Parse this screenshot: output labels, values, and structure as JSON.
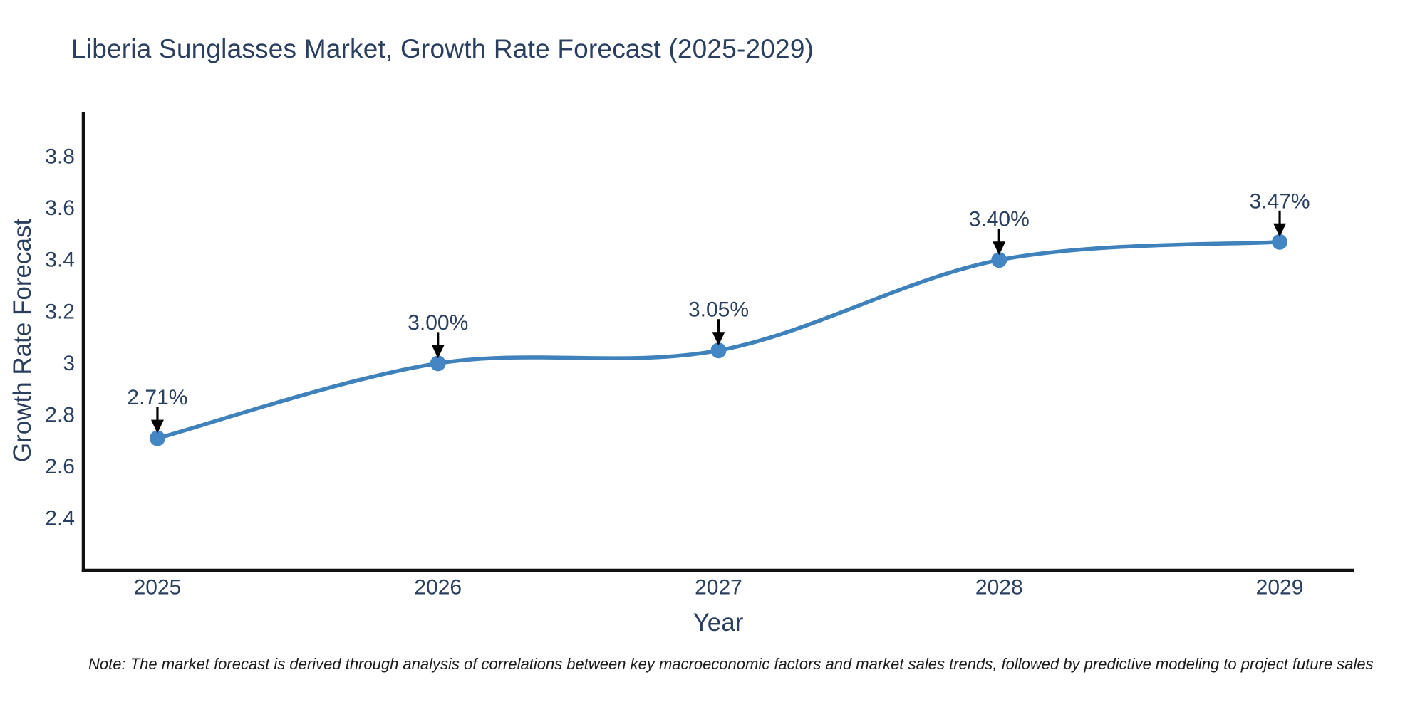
{
  "title": "Liberia Sunglasses Market, Growth Rate Forecast (2025-2029)",
  "note": "Note: The market forecast is derived through analysis of correlations between key macroeconomic factors and market sales trends, followed by predictive modeling to project future sales",
  "chart_data": {
    "type": "line",
    "title": "Liberia Sunglasses Market, Growth Rate Forecast (2025-2029)",
    "xlabel": "Year",
    "ylabel": "Growth Rate Forecast",
    "x": [
      2025,
      2026,
      2027,
      2028,
      2029
    ],
    "y": [
      2.71,
      3.0,
      3.05,
      3.4,
      3.47
    ],
    "point_labels": [
      "2.71%",
      "3.00%",
      "3.05%",
      "3.40%",
      "3.47%"
    ],
    "xtick_values": [
      2025,
      2026,
      2027,
      2028,
      2029
    ],
    "xtick_labels": [
      "2025",
      "2026",
      "2027",
      "2028",
      "2029"
    ],
    "ytick_values": [
      2.4,
      2.6,
      2.8,
      3,
      3.2,
      3.4,
      3.6,
      3.8
    ],
    "ytick_labels": [
      "2.4",
      "2.6",
      "2.8",
      "3",
      "3.2",
      "3.4",
      "3.6",
      "3.8"
    ],
    "xlim": [
      2024.736,
      2029.264
    ],
    "ylim": [
      2.199,
      3.971
    ],
    "line_shape": "spline",
    "grid": false,
    "legend": "none",
    "colors": {
      "line": "#3f81bb",
      "marker": "#4486c4",
      "axis": "#111111",
      "tick_text": "#2a3f5f",
      "annotation_text": "#2a3f5f",
      "annotation_arrow": "#000000"
    }
  }
}
